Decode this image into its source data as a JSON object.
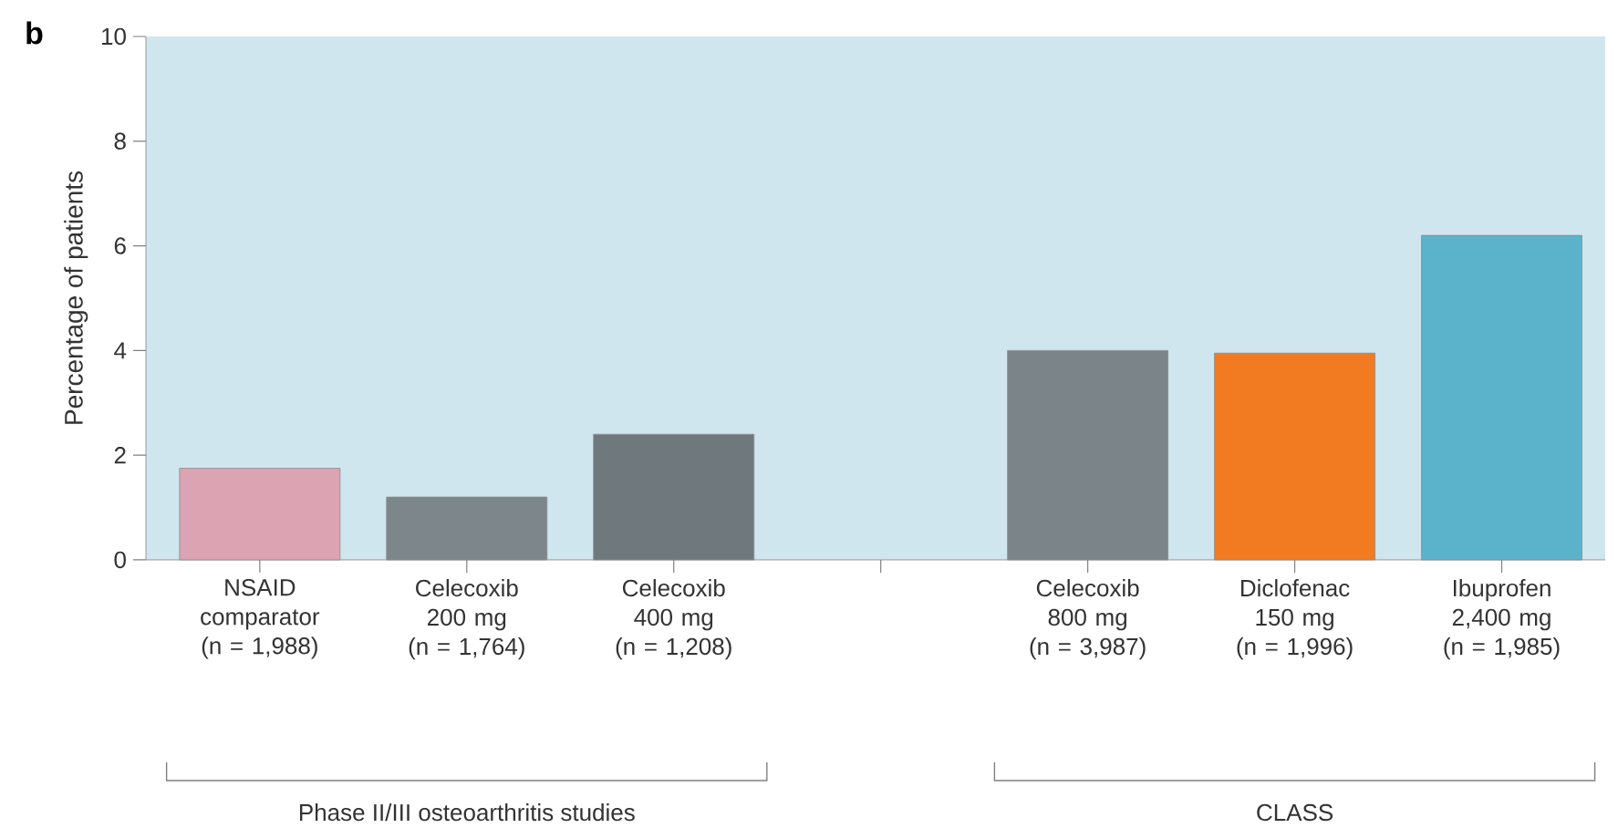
{
  "chart_data": {
    "type": "bar",
    "ylabel": "Percentage of patients",
    "categories": [
      "NSAID\ncomparator\n(n = 1,988)",
      "Celecoxib\n200 mg\n(n = 1,764)",
      "Celecoxib\n400 mg\n(n = 1,208)",
      null,
      "Celecoxib\n800 mg\n(n = 3,987)",
      "Diclofenac\n150 mg\n(n = 1,996)",
      "Ibuprofen\n2,400 mg\n(n = 1,985)"
    ],
    "values": [
      1.75,
      1.2,
      2.4,
      null,
      4.0,
      3.95,
      6.2
    ],
    "colors": [
      "#dca3b3",
      "#7d878b",
      "#6f797d",
      null,
      "#7b8589",
      "#f27b22",
      "#5bb3cb"
    ],
    "ylim": [
      0,
      10
    ],
    "yticks": [
      0,
      2,
      4,
      6,
      8,
      10
    ],
    "annotations": [
      "b",
      "Phase II/III osteoarthritis studies",
      "CLASS"
    ]
  }
}
